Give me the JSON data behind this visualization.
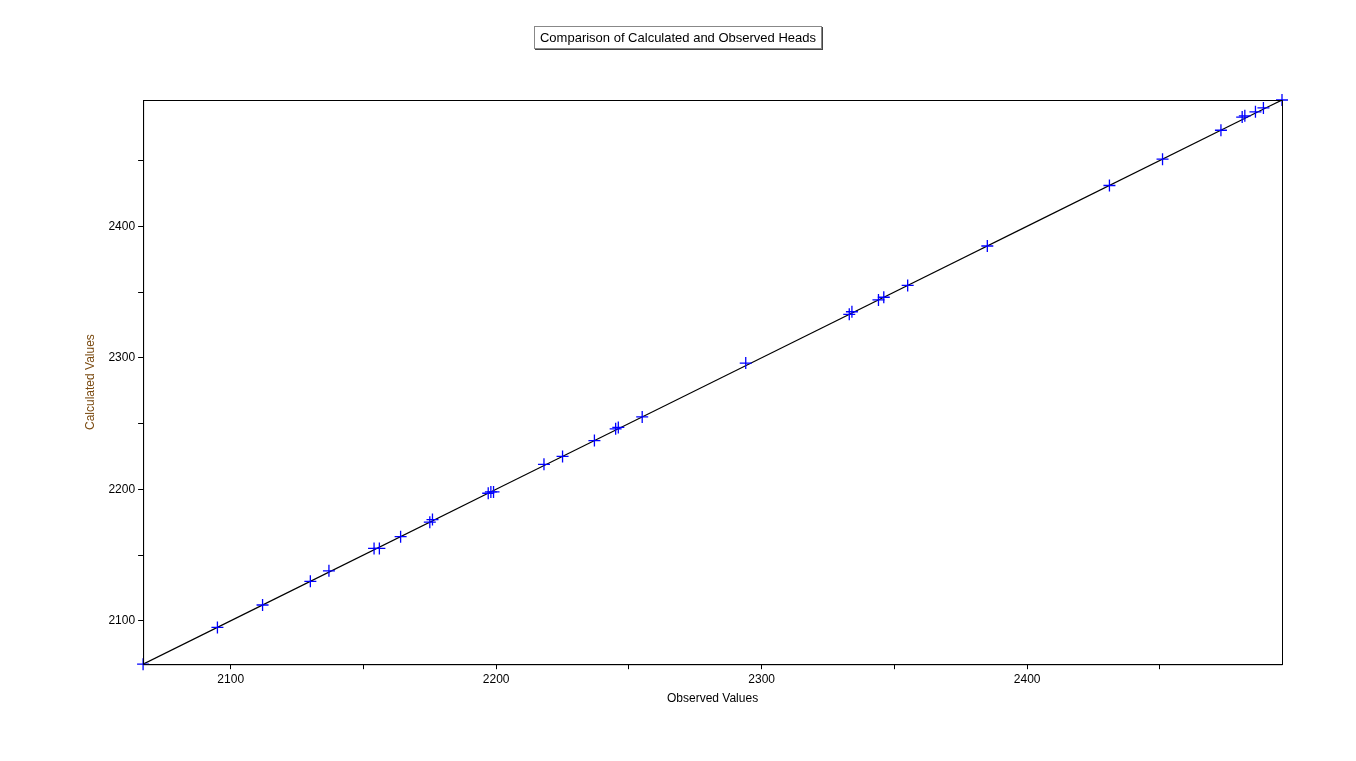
{
  "chart_data": {
    "type": "scatter",
    "title": "Comparison of Calculated and Observed Heads",
    "xlabel": "Observed Values",
    "ylabel": "Calculated Values",
    "xlim": [
      2067,
      2496
    ],
    "ylim": [
      2067,
      2496
    ],
    "xticks": [
      2100,
      {
        "value": 2150,
        "label": null
      },
      2200,
      {
        "value": 2250,
        "label": null
      },
      2300,
      {
        "value": 2350,
        "label": null
      },
      2400,
      {
        "value": 2450,
        "label": null
      }
    ],
    "yticks": [
      2100,
      {
        "value": 2150,
        "label": null
      },
      2200,
      {
        "value": 2250,
        "label": null
      },
      2300,
      {
        "value": 2350,
        "label": null
      },
      2400,
      {
        "value": 2450,
        "label": null
      }
    ],
    "grid": false,
    "legend": false,
    "marker": "cross",
    "series": [
      {
        "type": "scatter",
        "color": "#0000ff",
        "x": [
          2067,
          2095,
          2112,
          2130,
          2137,
          2154,
          2156,
          2164,
          2175,
          2176,
          2197,
          2198,
          2199,
          2218,
          2225,
          2237,
          2245,
          2246,
          2255,
          2294,
          2333,
          2334,
          2344,
          2346,
          2355,
          2385,
          2431,
          2451,
          2473,
          2481,
          2482,
          2486,
          2489,
          2496
        ],
        "values": [
          2067,
          2095,
          2112,
          2130,
          2138,
          2155,
          2155,
          2164,
          2175,
          2177,
          2197,
          2198,
          2198,
          2219,
          2225,
          2237,
          2246,
          2247,
          2255,
          2296,
          2333,
          2335,
          2344,
          2346,
          2355,
          2385,
          2431,
          2451,
          2473,
          2483,
          2484,
          2487,
          2490,
          2496
        ]
      },
      {
        "type": "line",
        "color": "#000000",
        "x": [
          2067,
          2496
        ],
        "values": [
          2067,
          2496
        ],
        "marker": "none",
        "line_style": "solid"
      }
    ]
  }
}
